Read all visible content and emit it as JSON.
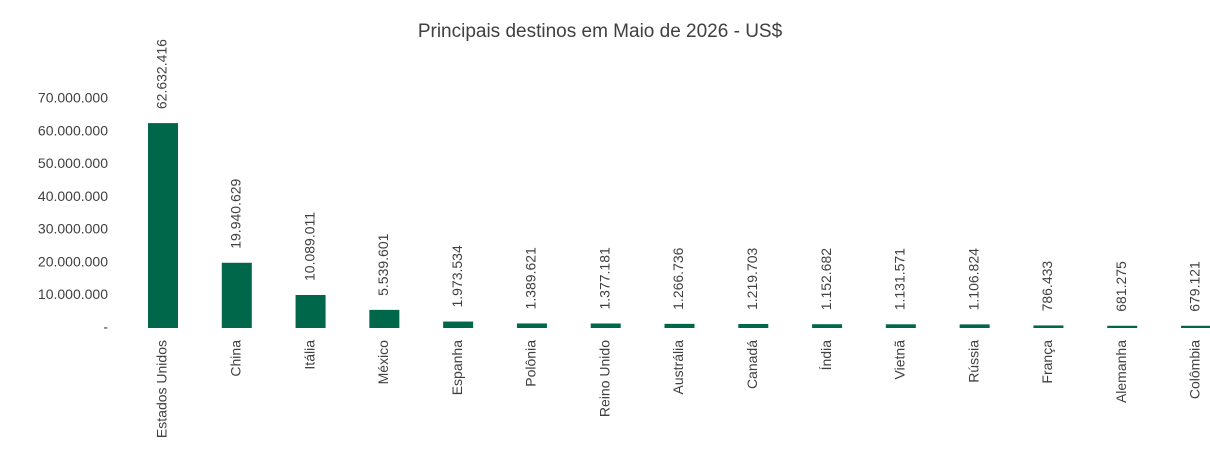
{
  "chart_data": {
    "type": "bar",
    "title": "Principais  destinos em Maio de 2026 - US$",
    "categories": [
      "Estados Unidos",
      "China",
      "Itália",
      "México",
      "Espanha",
      "Polônia",
      "Reino Unido",
      "Austrália",
      "Canadá",
      "Índia",
      "Vietnã",
      "Rússia",
      "França",
      "Alemanha",
      "Colômbia"
    ],
    "values": [
      62632416,
      19940629,
      10089011,
      5539601,
      1973534,
      1389621,
      1377181,
      1266736,
      1219703,
      1152682,
      1131571,
      1106824,
      786433,
      681275,
      679121
    ],
    "value_labels": [
      "62.632.416",
      "19.940.629",
      "10.089.011",
      "5.539.601",
      "1.973.534",
      "1.389.621",
      "1.377.181",
      "1.266.736",
      "1.219.703",
      "1.152.682",
      "1.131.571",
      "1.106.824",
      "786.433",
      "681.275",
      "679.121"
    ],
    "color": "#00674a",
    "ylim": [
      0,
      70000000
    ],
    "yticks": [
      {
        "value": 0,
        "label": "-"
      },
      {
        "value": 10000000,
        "label": "10.000.000"
      },
      {
        "value": 20000000,
        "label": "20.000.000"
      },
      {
        "value": 30000000,
        "label": "30.000.000"
      },
      {
        "value": 40000000,
        "label": "40.000.000"
      },
      {
        "value": 50000000,
        "label": "50.000.000"
      },
      {
        "value": 60000000,
        "label": "60.000.000"
      },
      {
        "value": 70000000,
        "label": "70.000.000"
      }
    ],
    "grid": false
  }
}
